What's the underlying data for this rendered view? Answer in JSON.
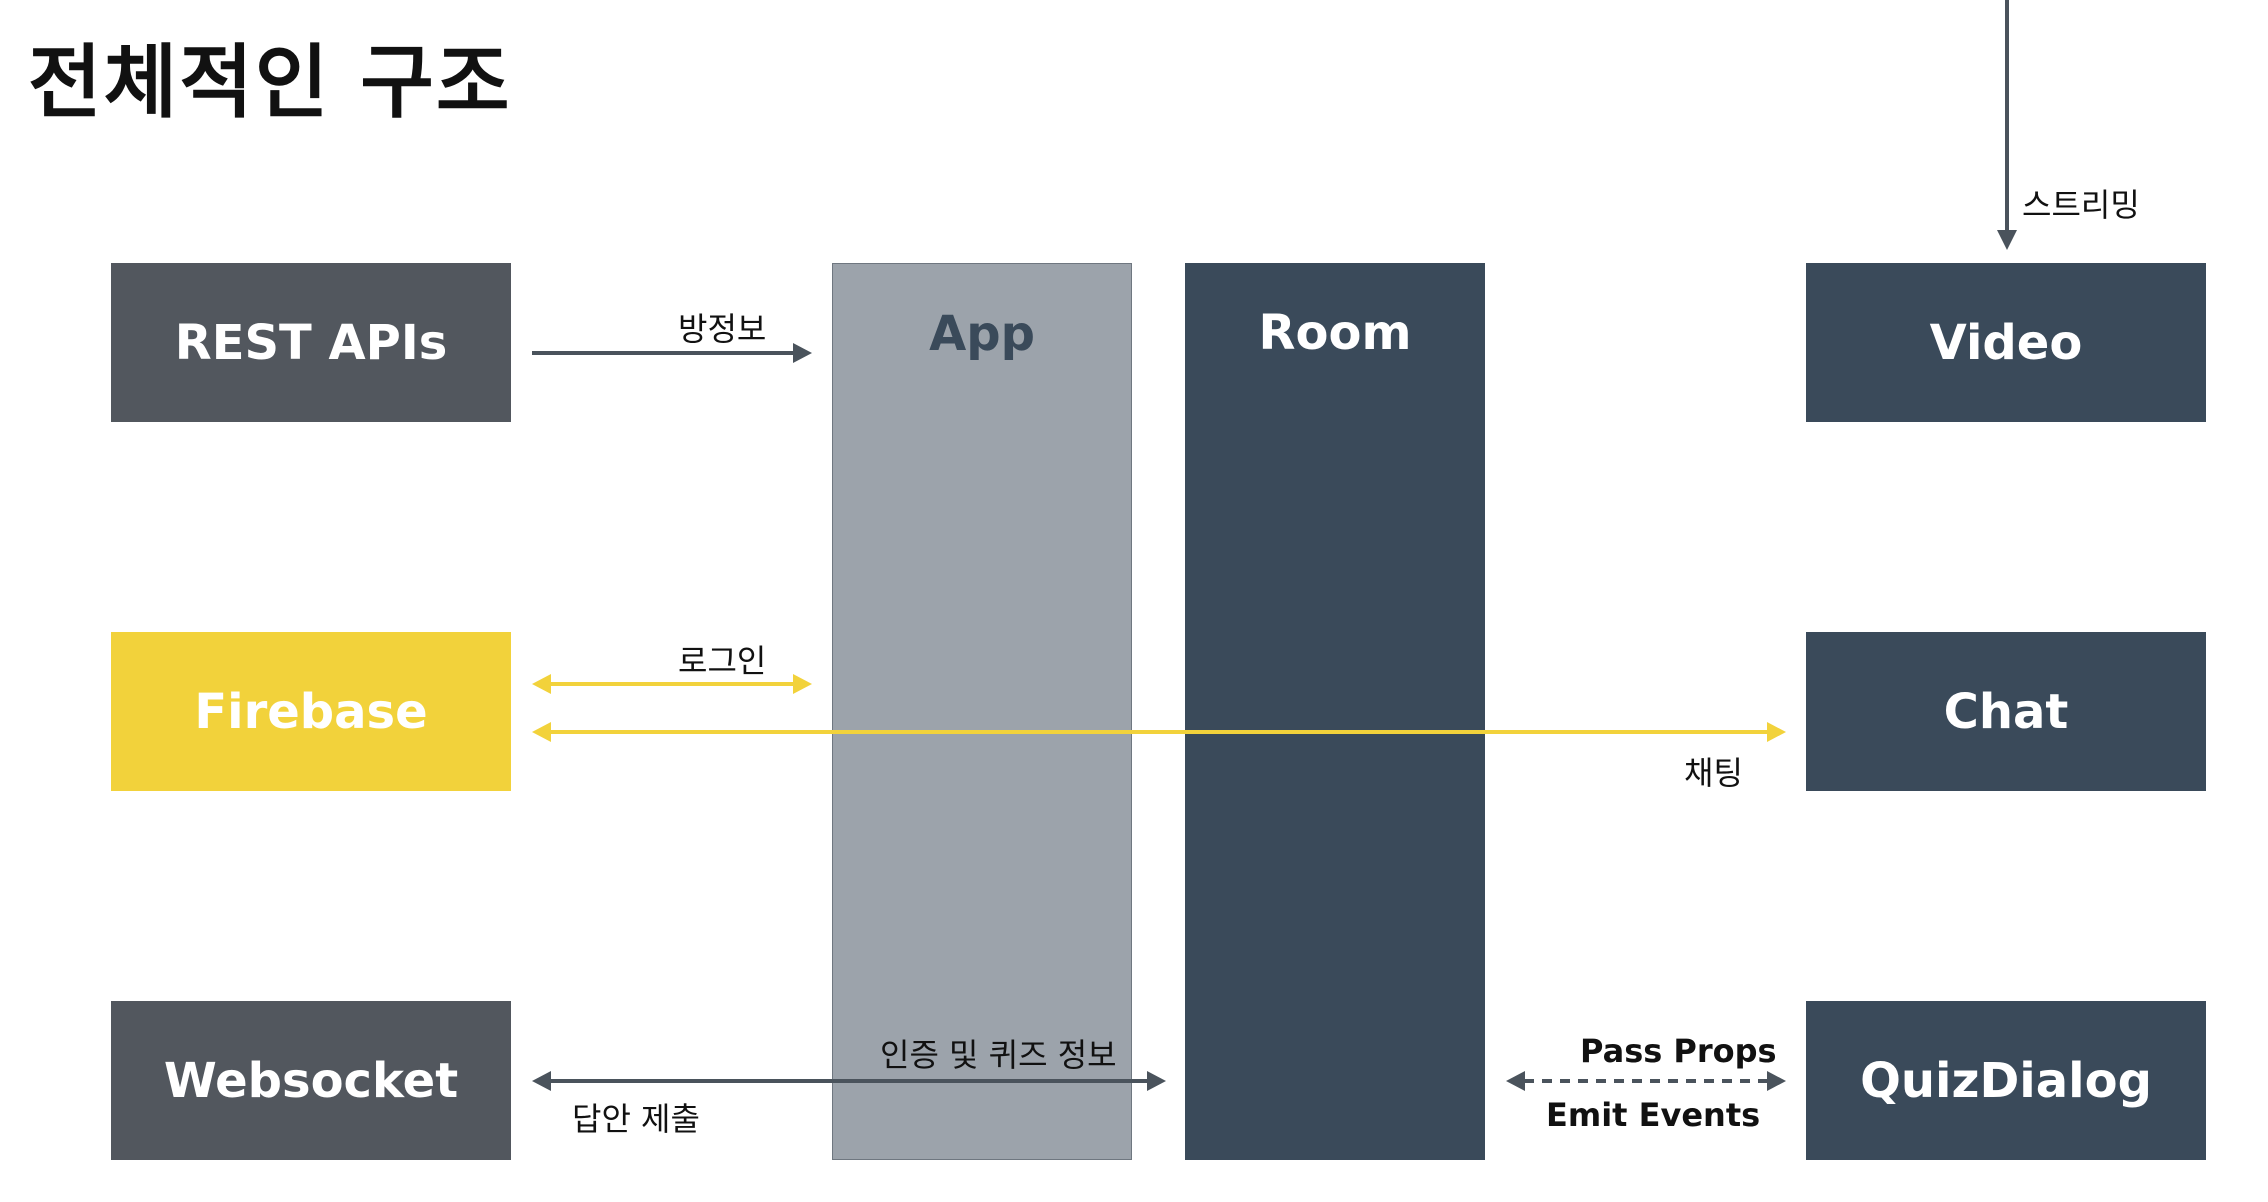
{
  "title": "전체적인 구조",
  "colors": {
    "gray_box": "#52575e",
    "yellow": "#f2d23b",
    "app_column": "#9ca3ab",
    "dark_box": "#3a4a5a",
    "arrow_dark": "#4a535c",
    "arrow_yellow": "#f2d23b"
  },
  "boxes": {
    "rest_apis": "REST APIs",
    "firebase": "Firebase",
    "websocket": "Websocket",
    "app": "App",
    "room": "Room",
    "video": "Video",
    "chat": "Chat",
    "quiz_dialog": "QuizDialog"
  },
  "edges": {
    "room_info": "방정보",
    "login": "로그인",
    "chatting": "채팅",
    "auth_quiz_info": "인증 및 퀴즈 정보",
    "answer_submit": "답안 제출",
    "pass_props": "Pass Props",
    "emit_events": "Emit Events",
    "streaming": "스트리밍"
  }
}
